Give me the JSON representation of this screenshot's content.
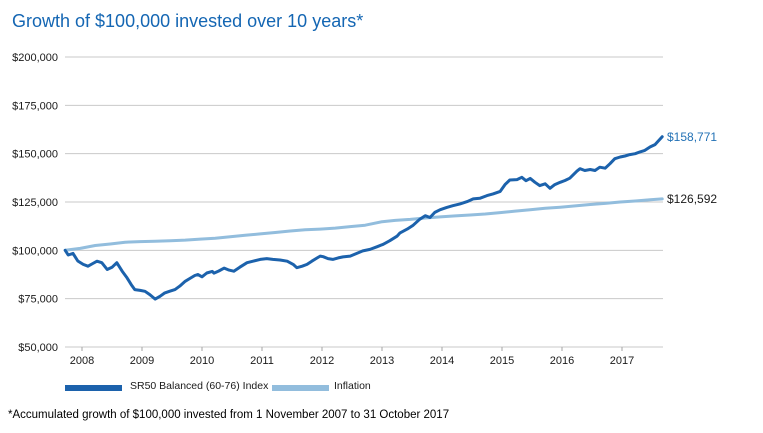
{
  "title": "Growth of $100,000 invested over 10 years*",
  "footnote": "*Accumulated growth of $100,000 invested from 1 November 2007 to 31 October 2017",
  "colors": {
    "title": "#1466b3",
    "grid": "#c9c9c9",
    "tick": "#a6a6a6",
    "axis_text": "#1a1a1a"
  },
  "chart_data": {
    "type": "line",
    "title": "Growth of $100,000 invested over 10 years*",
    "xlabel": "",
    "ylabel": "",
    "grid": "horizontal",
    "legend_position": "bottom",
    "ylim": [
      50000,
      200000
    ],
    "xlim": [
      2007.72,
      2017.67
    ],
    "y_ticks": [
      {
        "label": "$200,000",
        "value": 200000
      },
      {
        "label": "$175,000",
        "value": 175000
      },
      {
        "label": "$150,000",
        "value": 150000
      },
      {
        "label": "$125,000",
        "value": 125000
      },
      {
        "label": "$100,000",
        "value": 100000
      },
      {
        "label": "$75,000",
        "value": 75000
      },
      {
        "label": "$50,000",
        "value": 50000
      }
    ],
    "x_ticks": [
      {
        "label": "2008",
        "value": 2008
      },
      {
        "label": "2009",
        "value": 2009
      },
      {
        "label": "2010",
        "value": 2010
      },
      {
        "label": "2011",
        "value": 2011
      },
      {
        "label": "2012",
        "value": 2012
      },
      {
        "label": "2013",
        "value": 2013
      },
      {
        "label": "2014",
        "value": 2014
      },
      {
        "label": "2015",
        "value": 2015
      },
      {
        "label": "2016",
        "value": 2016
      },
      {
        "label": "2017",
        "value": 2017
      }
    ],
    "series": [
      {
        "name": "SR50 Balanced (60-76) Index",
        "color": "#1c62ac",
        "end_label": "$158,771",
        "end_value": 158771,
        "end_label_color": "#2271b5",
        "points": [
          [
            2007.72,
            100000
          ],
          [
            2007.77,
            97600
          ],
          [
            2007.85,
            98400
          ],
          [
            2007.93,
            94500
          ],
          [
            2008.02,
            92700
          ],
          [
            2008.1,
            91800
          ],
          [
            2008.18,
            93200
          ],
          [
            2008.25,
            94400
          ],
          [
            2008.33,
            93600
          ],
          [
            2008.42,
            90100
          ],
          [
            2008.5,
            91200
          ],
          [
            2008.58,
            93600
          ],
          [
            2008.67,
            89200
          ],
          [
            2008.75,
            85800
          ],
          [
            2008.82,
            82300
          ],
          [
            2008.88,
            79700
          ],
          [
            2008.97,
            79300
          ],
          [
            2009.05,
            78800
          ],
          [
            2009.13,
            77100
          ],
          [
            2009.22,
            74800
          ],
          [
            2009.3,
            76200
          ],
          [
            2009.38,
            78000
          ],
          [
            2009.47,
            78900
          ],
          [
            2009.55,
            79700
          ],
          [
            2009.63,
            81500
          ],
          [
            2009.72,
            84000
          ],
          [
            2009.8,
            85500
          ],
          [
            2009.88,
            87000
          ],
          [
            2009.93,
            87500
          ],
          [
            2010.0,
            86300
          ],
          [
            2010.08,
            88300
          ],
          [
            2010.17,
            89100
          ],
          [
            2010.2,
            88200
          ],
          [
            2010.28,
            89300
          ],
          [
            2010.37,
            90800
          ],
          [
            2010.45,
            89800
          ],
          [
            2010.53,
            89200
          ],
          [
            2010.63,
            91300
          ],
          [
            2010.75,
            93600
          ],
          [
            2010.85,
            94400
          ],
          [
            2010.97,
            95300
          ],
          [
            2011.08,
            95700
          ],
          [
            2011.18,
            95300
          ],
          [
            2011.3,
            95000
          ],
          [
            2011.42,
            94400
          ],
          [
            2011.52,
            92700
          ],
          [
            2011.58,
            91000
          ],
          [
            2011.67,
            91800
          ],
          [
            2011.75,
            92700
          ],
          [
            2011.83,
            94400
          ],
          [
            2011.92,
            96100
          ],
          [
            2011.97,
            97000
          ],
          [
            2012.02,
            96700
          ],
          [
            2012.1,
            95700
          ],
          [
            2012.18,
            95300
          ],
          [
            2012.27,
            96100
          ],
          [
            2012.35,
            96600
          ],
          [
            2012.47,
            97000
          ],
          [
            2012.58,
            98400
          ],
          [
            2012.68,
            99700
          ],
          [
            2012.8,
            100500
          ],
          [
            2012.92,
            101900
          ],
          [
            2013.02,
            103100
          ],
          [
            2013.13,
            105000
          ],
          [
            2013.25,
            107300
          ],
          [
            2013.3,
            109000
          ],
          [
            2013.42,
            111000
          ],
          [
            2013.52,
            113000
          ],
          [
            2013.63,
            116100
          ],
          [
            2013.72,
            117900
          ],
          [
            2013.8,
            117000
          ],
          [
            2013.88,
            119600
          ],
          [
            2013.97,
            121000
          ],
          [
            2014.08,
            122200
          ],
          [
            2014.18,
            123100
          ],
          [
            2014.3,
            124000
          ],
          [
            2014.42,
            125200
          ],
          [
            2014.52,
            126600
          ],
          [
            2014.63,
            126900
          ],
          [
            2014.75,
            128300
          ],
          [
            2014.85,
            129200
          ],
          [
            2014.97,
            130500
          ],
          [
            2015.05,
            134000
          ],
          [
            2015.13,
            136400
          ],
          [
            2015.25,
            136600
          ],
          [
            2015.33,
            137800
          ],
          [
            2015.4,
            136000
          ],
          [
            2015.47,
            137200
          ],
          [
            2015.55,
            135200
          ],
          [
            2015.63,
            133500
          ],
          [
            2015.72,
            134400
          ],
          [
            2015.8,
            132100
          ],
          [
            2015.88,
            134000
          ],
          [
            2015.97,
            135200
          ],
          [
            2016.05,
            136100
          ],
          [
            2016.13,
            137300
          ],
          [
            2016.25,
            141000
          ],
          [
            2016.3,
            142200
          ],
          [
            2016.38,
            141300
          ],
          [
            2016.47,
            141800
          ],
          [
            2016.55,
            141300
          ],
          [
            2016.63,
            143000
          ],
          [
            2016.72,
            142500
          ],
          [
            2016.8,
            144800
          ],
          [
            2016.88,
            147400
          ],
          [
            2016.97,
            148300
          ],
          [
            2017.05,
            148800
          ],
          [
            2017.13,
            149500
          ],
          [
            2017.22,
            150000
          ],
          [
            2017.3,
            150900
          ],
          [
            2017.38,
            151700
          ],
          [
            2017.47,
            153500
          ],
          [
            2017.55,
            154700
          ],
          [
            2017.67,
            158771
          ]
        ]
      },
      {
        "name": "Inflation",
        "color": "#92bddd",
        "end_label": "$126,592",
        "end_value": 126592,
        "end_label_color": "#1a1a1a",
        "points": [
          [
            2007.72,
            100000
          ],
          [
            2007.97,
            101000
          ],
          [
            2008.22,
            102500
          ],
          [
            2008.47,
            103300
          ],
          [
            2008.72,
            104200
          ],
          [
            2008.97,
            104500
          ],
          [
            2009.22,
            104700
          ],
          [
            2009.47,
            105000
          ],
          [
            2009.72,
            105300
          ],
          [
            2009.97,
            105800
          ],
          [
            2010.22,
            106300
          ],
          [
            2010.47,
            107000
          ],
          [
            2010.72,
            107800
          ],
          [
            2010.97,
            108500
          ],
          [
            2011.22,
            109200
          ],
          [
            2011.47,
            110000
          ],
          [
            2011.72,
            110600
          ],
          [
            2011.97,
            111000
          ],
          [
            2012.22,
            111500
          ],
          [
            2012.47,
            112300
          ],
          [
            2012.72,
            113000
          ],
          [
            2013.0,
            114800
          ],
          [
            2013.22,
            115500
          ],
          [
            2013.47,
            116000
          ],
          [
            2013.72,
            116700
          ],
          [
            2013.97,
            117300
          ],
          [
            2014.22,
            117800
          ],
          [
            2014.47,
            118300
          ],
          [
            2014.72,
            118800
          ],
          [
            2014.97,
            119500
          ],
          [
            2015.22,
            120300
          ],
          [
            2015.47,
            121000
          ],
          [
            2015.72,
            121800
          ],
          [
            2015.97,
            122300
          ],
          [
            2016.22,
            123000
          ],
          [
            2016.47,
            123700
          ],
          [
            2016.72,
            124300
          ],
          [
            2016.97,
            125000
          ],
          [
            2017.22,
            125500
          ],
          [
            2017.47,
            126200
          ],
          [
            2017.67,
            126592
          ]
        ]
      }
    ]
  }
}
